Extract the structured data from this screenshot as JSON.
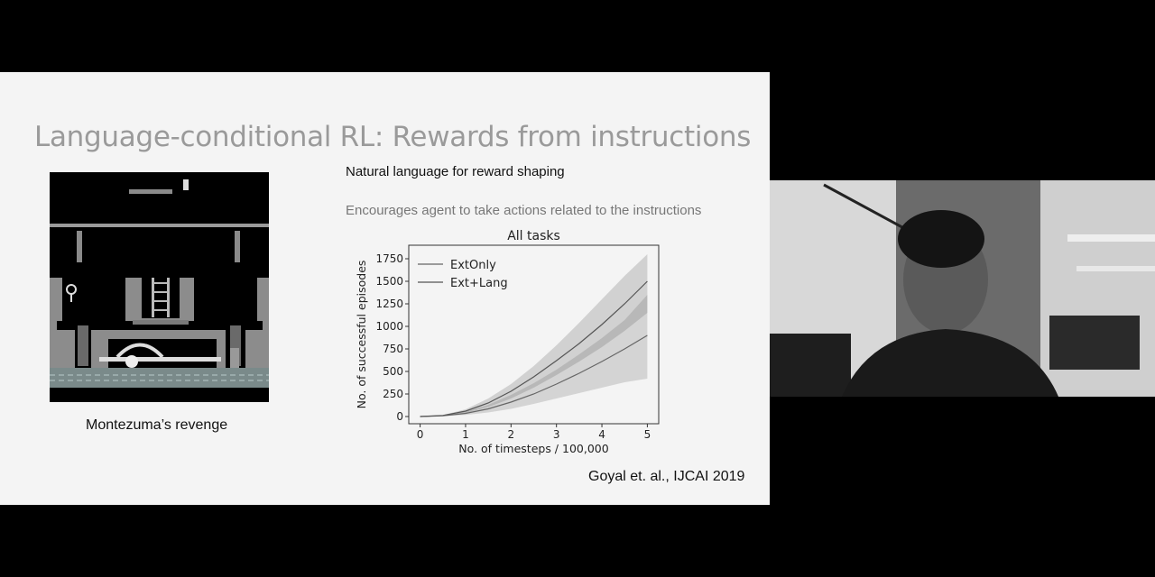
{
  "slide": {
    "title": "Language-conditional RL: Rewards from instructions",
    "subtitle": "Natural language for reward shaping",
    "note": "Encourages agent to take actions related to the instructions",
    "image_caption": "Montezuma’s revenge",
    "citation": "Goyal et. al., IJCAI 2019"
  },
  "chart_data": {
    "type": "line",
    "title": "All tasks",
    "xlabel": "No. of timesteps / 100,000",
    "ylabel": "No. of successful episodes",
    "xlim": [
      -0.25,
      5.25
    ],
    "ylim": [
      -80,
      1900
    ],
    "xticks": [
      0,
      1,
      2,
      3,
      4,
      5
    ],
    "yticks": [
      0,
      250,
      500,
      750,
      1000,
      1250,
      1500,
      1750
    ],
    "legend_position": "top-left",
    "x": [
      0,
      0.5,
      1,
      1.5,
      2,
      2.5,
      3,
      3.5,
      4,
      4.5,
      5
    ],
    "series": [
      {
        "name": "ExtOnly",
        "values": [
          0,
          8,
          35,
          85,
          160,
          250,
          360,
          480,
          610,
          750,
          900
        ],
        "lower": [
          0,
          4,
          18,
          45,
          85,
          140,
          200,
          260,
          320,
          380,
          420
        ],
        "upper": [
          0,
          14,
          55,
          130,
          240,
          370,
          520,
          690,
          870,
          1070,
          1350
        ],
        "color": "#666666"
      },
      {
        "name": "Ext+Lang",
        "values": [
          0,
          12,
          60,
          150,
          280,
          440,
          620,
          810,
          1020,
          1250,
          1500
        ],
        "lower": [
          0,
          8,
          40,
          105,
          200,
          320,
          460,
          610,
          770,
          950,
          1150
        ],
        "upper": [
          0,
          16,
          80,
          200,
          360,
          560,
          790,
          1040,
          1300,
          1560,
          1800
        ],
        "color": "#555555"
      }
    ]
  }
}
